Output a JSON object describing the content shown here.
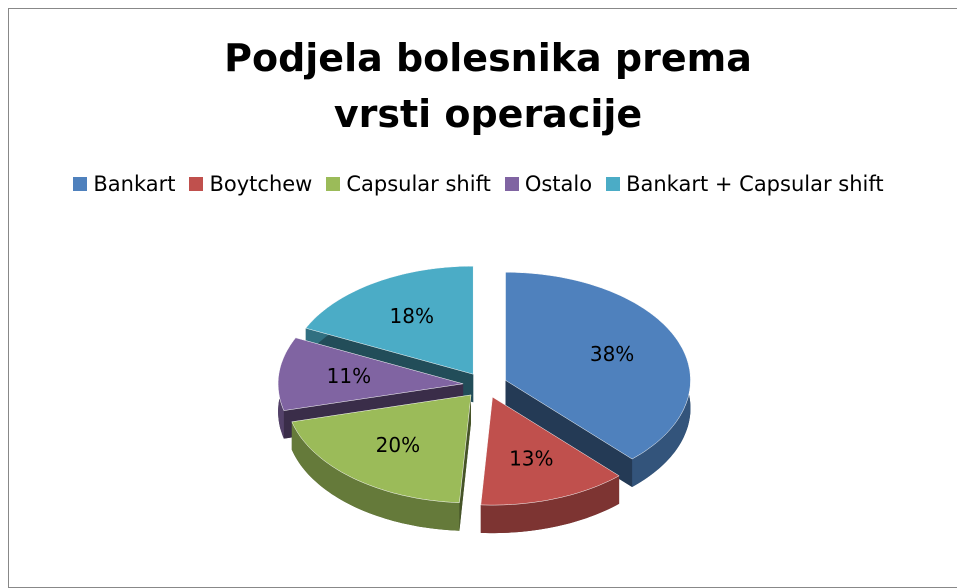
{
  "chart_data": {
    "type": "pie",
    "title": "Podjela bolesnika prema vrsti operacije",
    "categories": [
      "Bankart",
      "Boytchew",
      "Capsular shift",
      "Ostalo",
      "Bankart + Capsular shift"
    ],
    "values": [
      38,
      13,
      20,
      11,
      18
    ],
    "value_labels": [
      "38%",
      "13%",
      "20%",
      "11%",
      "18%"
    ],
    "colors": [
      "#4f81bd",
      "#c0504d",
      "#9bbb59",
      "#8064a2",
      "#4bacc6"
    ],
    "legend": "top"
  }
}
